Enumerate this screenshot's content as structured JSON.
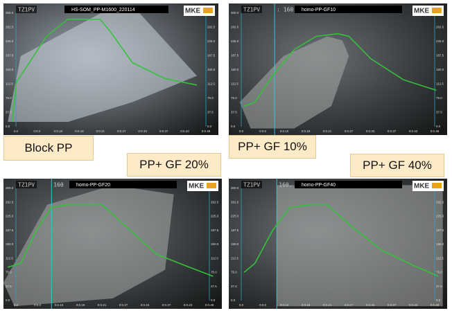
{
  "panels": [
    {
      "title": "HS-SOM_PP-M1600_220114",
      "tag": "TZ1PV",
      "logo": "MKE"
    },
    {
      "title": "homo-PP-GF10",
      "tag": "TZ1PV",
      "cursor": ": 160",
      "logo": "MKE"
    },
    {
      "title": "homo-PP-GF20",
      "tag": "TZ1PV",
      "cursor": "160",
      "logo": "MKE"
    },
    {
      "title": "homo-PP-GF40",
      "tag": "TZ1PV",
      "cursor": "160.",
      "logo": "MKE"
    }
  ],
  "axis": {
    "left": [
      "300.0",
      "262.5",
      "225.0",
      "187.5",
      "150.0",
      "112.5",
      "75.0",
      "37.5",
      "0.0"
    ],
    "right": [
      "300.0",
      "262.5",
      "225.0",
      "187.5",
      "150.0",
      "112.5",
      "75.0",
      "37.5",
      "0.0"
    ],
    "bottom": [
      "0.0",
      "0:0.0",
      "0:0.10",
      "0:0.18",
      "0:0.21",
      "0:0.27",
      "0:0.33",
      "0:0.37",
      "0:0.43",
      "0:0.48"
    ]
  },
  "labels": [
    "Block PP",
    "PP+ GF 10%",
    "PP+ GF 20%",
    "PP+ GF 40%"
  ]
}
